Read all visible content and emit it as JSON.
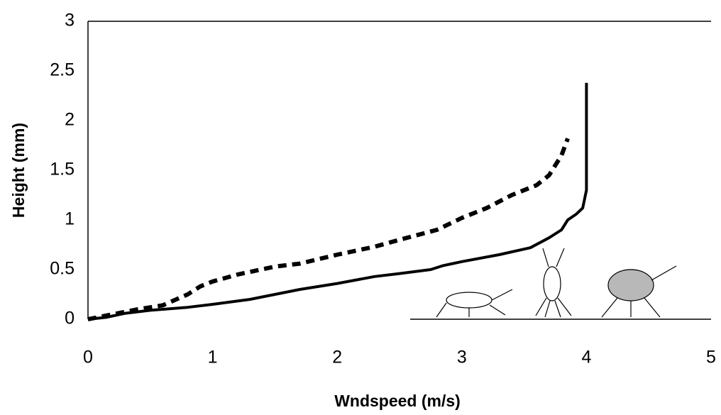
{
  "chart_data": {
    "type": "line",
    "x_label": "Wndspeed (m/s)",
    "y_label": "Height (mm)",
    "xlim": [
      0,
      5
    ],
    "xticks": [
      0,
      1,
      2,
      3,
      4,
      5
    ],
    "ylim": [
      0,
      3
    ],
    "yticks": [
      0,
      0.5,
      1,
      1.5,
      2,
      2.5,
      3
    ],
    "grid": false,
    "series": [
      {
        "color": "#000000",
        "dashed": false,
        "x": [
          0,
          0.15,
          0.3,
          0.5,
          0.8,
          1.0,
          1.3,
          1.5,
          1.7,
          2.0,
          2.3,
          2.5,
          2.75,
          2.85,
          3.0,
          3.3,
          3.55,
          3.7,
          3.8,
          3.85,
          3.92,
          3.97,
          4.0,
          4.0,
          4.0
        ],
        "values": [
          0,
          0.02,
          0.06,
          0.09,
          0.12,
          0.15,
          0.2,
          0.25,
          0.3,
          0.36,
          0.43,
          0.46,
          0.5,
          0.54,
          0.58,
          0.65,
          0.72,
          0.82,
          0.9,
          1.0,
          1.06,
          1.12,
          1.3,
          1.8,
          2.38
        ]
      },
      {
        "color": "#000000",
        "dashed": true,
        "x": [
          0,
          0.2,
          0.4,
          0.6,
          0.8,
          0.9,
          1.0,
          1.2,
          1.5,
          1.7,
          2.0,
          2.3,
          2.5,
          2.8,
          3.0,
          3.2,
          3.4,
          3.6,
          3.7,
          3.8,
          3.85
        ],
        "values": [
          0,
          0.05,
          0.1,
          0.14,
          0.25,
          0.33,
          0.38,
          0.45,
          0.53,
          0.56,
          0.65,
          0.73,
          0.8,
          0.9,
          1.02,
          1.12,
          1.25,
          1.35,
          1.45,
          1.65,
          1.82
        ]
      }
    ]
  }
}
